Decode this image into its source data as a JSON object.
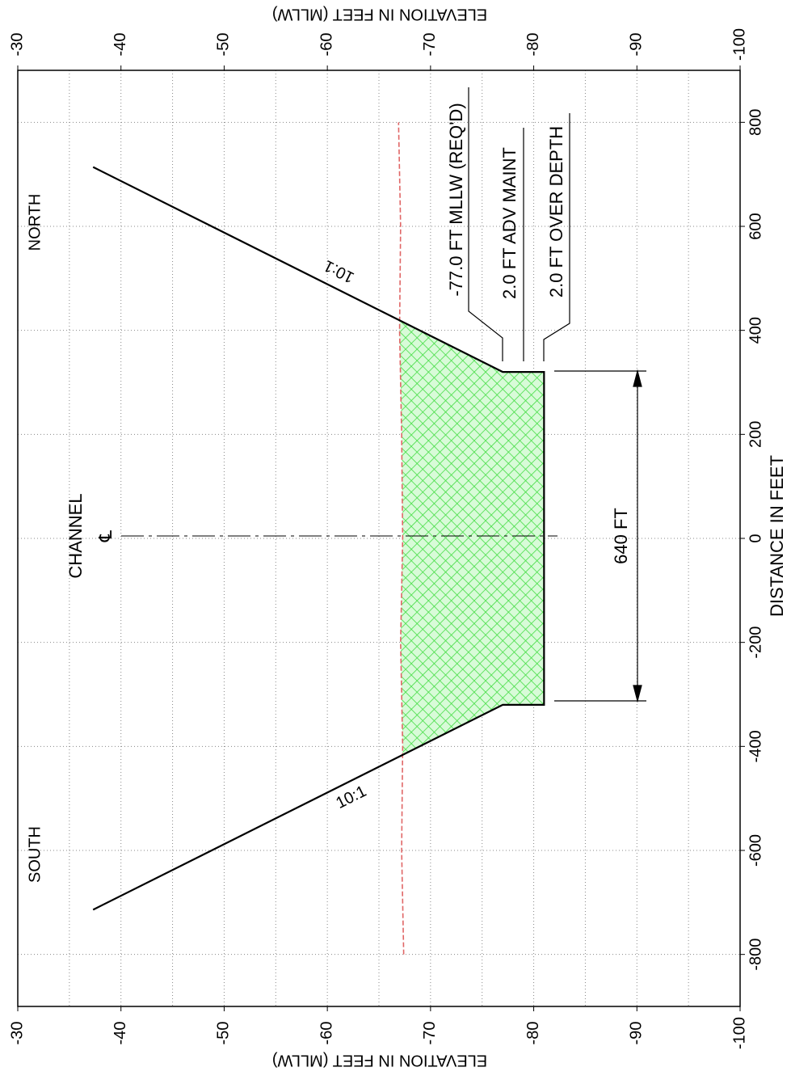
{
  "chart_data": {
    "type": "cross-section",
    "x_label": "DISTANCE IN FEET",
    "y_label": "ELEVATION IN FEET (MLLW)",
    "xlim": [
      -900,
      900
    ],
    "xticks": [
      -800,
      -600,
      -400,
      -200,
      0,
      200,
      400,
      600,
      800
    ],
    "ylim": [
      -100,
      -30
    ],
    "yticks": [
      -30,
      -40,
      -50,
      -60,
      -70,
      -80,
      -90,
      -100
    ],
    "grid": true,
    "ground": {
      "color": "#e06666",
      "x": [
        -800,
        -600,
        -400,
        -200,
        0,
        200,
        400,
        600,
        800
      ],
      "values": [
        -67.4,
        -67.2,
        -67.3,
        -67.1,
        -67.3,
        -67.2,
        -67.0,
        -67.1,
        -66.9
      ]
    },
    "section": {
      "color": "#000000",
      "fill": "#33cc33",
      "x": [
        -714,
        -320,
        -320,
        320,
        320,
        714
      ],
      "values": [
        -37.3,
        -77,
        -81,
        -81,
        -77,
        -37.3
      ]
    },
    "annotations": {
      "north": "NORTH",
      "south": "SOUTH",
      "channel": "CHANNEL",
      "centerline": "℄",
      "slope_north": "10:1",
      "slope_south": "10:1",
      "required": "-77.0 FT MLLW (REQ'D)",
      "adv_maint": "2.0 FT ADV MAINT",
      "over_depth": "2.0 FT OVER DEPTH",
      "width": "640 FT"
    }
  }
}
